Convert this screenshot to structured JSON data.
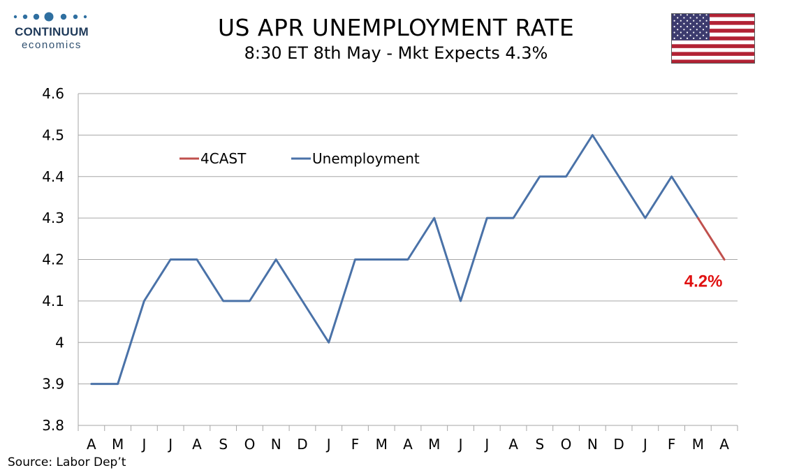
{
  "logo": {
    "name": "CONTINUUM",
    "sub": "economics"
  },
  "header": {
    "title": "US APR UNEMPLOYMENT RATE",
    "subtitle": "8:30 ET 8th May - Mkt Expects 4.3%"
  },
  "flag": {
    "name": "us-flag"
  },
  "source": "Source: Labor Dep’t",
  "colors": {
    "unemployment": "#4a72a8",
    "forecast": "#c0504d",
    "annotation": "#e01010",
    "grid": "#a6a6a6"
  },
  "chart_data": {
    "type": "line",
    "title": "US APR UNEMPLOYMENT RATE",
    "categories": [
      "A",
      "M",
      "J",
      "J",
      "A",
      "S",
      "O",
      "N",
      "D",
      "J",
      "F",
      "M",
      "A",
      "M",
      "J",
      "J",
      "A",
      "S",
      "O",
      "N",
      "D",
      "J",
      "F",
      "M",
      "A"
    ],
    "series": [
      {
        "name": "Unemployment",
        "values": [
          3.9,
          3.9,
          4.1,
          4.2,
          4.2,
          4.1,
          4.1,
          4.2,
          4.1,
          4.0,
          4.2,
          4.2,
          4.2,
          4.3,
          4.1,
          4.3,
          4.3,
          4.4,
          4.4,
          4.5,
          4.4,
          4.3,
          4.4,
          4.3,
          null
        ]
      },
      {
        "name": "4CAST",
        "values": [
          null,
          null,
          null,
          null,
          null,
          null,
          null,
          null,
          null,
          null,
          null,
          null,
          null,
          null,
          null,
          null,
          null,
          null,
          null,
          null,
          null,
          null,
          null,
          4.3,
          4.2
        ]
      }
    ],
    "yticks": [
      "4.6",
      "4.5",
      "4.4",
      "4.3",
      "4.2",
      "4.1",
      "4",
      "3.9",
      "3.8"
    ],
    "ylim": [
      3.8,
      4.6
    ],
    "annotation": "4.2%",
    "legend": [
      "4CAST",
      "Unemployment"
    ],
    "legend_position": "top-left",
    "grid": true,
    "xlabel": "",
    "ylabel": ""
  }
}
